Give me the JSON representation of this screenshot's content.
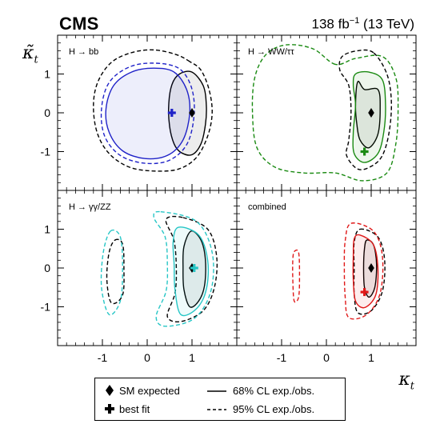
{
  "header": {
    "experiment": "CMS",
    "luminosity": "138 fb",
    "luminosity_exp": "−1",
    "energy": " (13 TeV)"
  },
  "axes": {
    "y_symbol": "κ̃",
    "y_sub": "t",
    "x_symbol": "κ",
    "x_sub": "t"
  },
  "legend": {
    "sm_expected": "SM expected",
    "best_fit": "best fit",
    "cl68": "68% CL exp./obs.",
    "cl95": "95% CL exp./obs."
  },
  "colors": {
    "bb": "#1f22c8",
    "ww": "#1a8a12",
    "gg": "#27c6c6",
    "combined": "#e01818",
    "expected": "#000000"
  },
  "chart_data": [
    {
      "type": "contour",
      "panel_label": "H → bb",
      "xlim": [
        -2,
        2
      ],
      "ylim": [
        -2,
        2
      ],
      "x_ticks": [
        -1,
        0,
        1
      ],
      "y_ticks": [
        -1,
        0,
        1
      ],
      "sm_expected": [
        1,
        0
      ],
      "best_fit": [
        0.55,
        0.0
      ],
      "color_key": "bb",
      "contours": [
        {
          "cl": "68%",
          "kind": "expected",
          "points": [
            [
              1.0,
              1.05
            ],
            [
              0.72,
              1.0
            ],
            [
              0.55,
              0.72
            ],
            [
              0.48,
              0.2
            ],
            [
              0.5,
              -0.35
            ],
            [
              0.6,
              -0.8
            ],
            [
              0.75,
              -1.02
            ],
            [
              1.0,
              -1.08
            ],
            [
              1.2,
              -0.8
            ],
            [
              1.3,
              -0.3
            ],
            [
              1.32,
              0.2
            ],
            [
              1.25,
              0.7
            ]
          ]
        },
        {
          "cl": "95%",
          "kind": "expected",
          "points": [
            [
              0.95,
              1.32
            ],
            [
              0.65,
              1.5
            ],
            [
              0.15,
              1.62
            ],
            [
              -0.35,
              1.55
            ],
            [
              -0.8,
              1.3
            ],
            [
              -1.1,
              0.8
            ],
            [
              -1.2,
              0.2
            ],
            [
              -1.12,
              -0.5
            ],
            [
              -0.85,
              -1.05
            ],
            [
              -0.4,
              -1.4
            ],
            [
              0.15,
              -1.5
            ],
            [
              0.7,
              -1.45
            ],
            [
              1.1,
              -1.15
            ],
            [
              1.35,
              -0.6
            ],
            [
              1.45,
              0.0
            ],
            [
              1.38,
              0.6
            ],
            [
              1.2,
              1.1
            ]
          ]
        },
        {
          "cl": "68%",
          "kind": "observed",
          "points": [
            [
              0.6,
              1.05
            ],
            [
              0.15,
              1.15
            ],
            [
              -0.35,
              1.05
            ],
            [
              -0.75,
              0.7
            ],
            [
              -0.92,
              0.1
            ],
            [
              -0.85,
              -0.5
            ],
            [
              -0.55,
              -0.98
            ],
            [
              -0.05,
              -1.18
            ],
            [
              0.45,
              -1.1
            ],
            [
              0.8,
              -0.7
            ],
            [
              0.95,
              0.0
            ],
            [
              0.88,
              0.6
            ]
          ]
        },
        {
          "cl": "95%",
          "kind": "observed",
          "points": [
            [
              0.7,
              1.15
            ],
            [
              0.15,
              1.28
            ],
            [
              -0.4,
              1.18
            ],
            [
              -0.85,
              0.78
            ],
            [
              -1.02,
              0.1
            ],
            [
              -0.95,
              -0.6
            ],
            [
              -0.6,
              -1.1
            ],
            [
              -0.05,
              -1.3
            ],
            [
              0.5,
              -1.22
            ],
            [
              0.9,
              -0.78
            ],
            [
              1.05,
              0.0
            ],
            [
              0.98,
              0.68
            ]
          ]
        }
      ]
    },
    {
      "type": "contour",
      "panel_label": "H → WW/ττ",
      "xlim": [
        -2,
        2
      ],
      "ylim": [
        -2,
        2
      ],
      "x_ticks": [
        -1,
        0,
        1
      ],
      "y_ticks": [
        -1,
        0,
        1
      ],
      "sm_expected": [
        1,
        0
      ],
      "best_fit": [
        0.85,
        -1.0
      ],
      "color_key": "ww",
      "contours": [
        {
          "cl": "68%",
          "kind": "expected",
          "points": [
            [
              0.7,
              0.8
            ],
            [
              0.85,
              0.6
            ],
            [
              1.15,
              0.6
            ],
            [
              1.2,
              0.1
            ],
            [
              1.15,
              -0.55
            ],
            [
              0.95,
              -0.9
            ],
            [
              0.75,
              -0.7
            ],
            [
              0.68,
              -0.3
            ],
            [
              0.65,
              0.2
            ]
          ]
        },
        {
          "cl": "95%",
          "kind": "expected",
          "points": [
            [
              1.05,
              1.55
            ],
            [
              0.7,
              1.6
            ],
            [
              0.35,
              1.45
            ],
            [
              0.3,
              1.1
            ],
            [
              0.5,
              0.7
            ],
            [
              0.55,
              0.0
            ],
            [
              0.5,
              -0.7
            ],
            [
              0.45,
              -1.1
            ],
            [
              0.7,
              -1.45
            ],
            [
              1.0,
              -1.38
            ],
            [
              1.25,
              -1.1
            ],
            [
              1.4,
              -0.5
            ],
            [
              1.45,
              0.3
            ],
            [
              1.35,
              1.0
            ]
          ]
        },
        {
          "cl": "68%",
          "kind": "observed",
          "points": [
            [
              0.65,
              1.0
            ],
            [
              0.95,
              1.05
            ],
            [
              1.25,
              0.85
            ],
            [
              1.32,
              0.2
            ],
            [
              1.28,
              -0.5
            ],
            [
              1.15,
              -1.05
            ],
            [
              0.85,
              -1.28
            ],
            [
              0.62,
              -1.05
            ],
            [
              0.6,
              -0.5
            ],
            [
              0.65,
              0.2
            ],
            [
              0.6,
              0.7
            ]
          ]
        },
        {
          "cl": "95%",
          "kind": "observed",
          "points": [
            [
              0.2,
              1.25
            ],
            [
              -0.3,
              1.65
            ],
            [
              -0.9,
              1.75
            ],
            [
              -1.35,
              1.5
            ],
            [
              -1.6,
              0.9
            ],
            [
              -1.65,
              0.0
            ],
            [
              -1.55,
              -0.9
            ],
            [
              -1.15,
              -1.4
            ],
            [
              -0.5,
              -1.55
            ],
            [
              0.2,
              -1.55
            ],
            [
              0.8,
              -1.75
            ],
            [
              1.35,
              -1.55
            ],
            [
              1.55,
              -0.8
            ],
            [
              1.6,
              0.1
            ],
            [
              1.55,
              0.9
            ],
            [
              1.25,
              1.45
            ],
            [
              0.65,
              1.4
            ]
          ]
        }
      ]
    },
    {
      "type": "contour",
      "panel_label": "H → γγ/ZZ",
      "xlim": [
        -2,
        2
      ],
      "ylim": [
        -2,
        2
      ],
      "x_ticks": [
        -1,
        0,
        1
      ],
      "y_ticks": [
        -1,
        0,
        1
      ],
      "sm_expected": [
        1,
        0
      ],
      "best_fit": [
        1.05,
        0.0
      ],
      "color_key": "gg",
      "contours": [
        {
          "cl": "68%",
          "kind": "expected",
          "points": [
            [
              0.98,
              0.95
            ],
            [
              1.2,
              0.72
            ],
            [
              1.3,
              0.2
            ],
            [
              1.28,
              -0.45
            ],
            [
              1.15,
              -0.85
            ],
            [
              0.95,
              -1.0
            ],
            [
              0.82,
              -0.55
            ],
            [
              0.8,
              0.0
            ],
            [
              0.82,
              0.55
            ]
          ]
        },
        {
          "cl": "95%",
          "kind": "expected",
          "points": [
            [
              0.8,
              1.3
            ],
            [
              1.35,
              1.0
            ],
            [
              1.55,
              0.3
            ],
            [
              1.5,
              -0.5
            ],
            [
              1.25,
              -1.1
            ],
            [
              0.75,
              -1.38
            ],
            [
              0.45,
              -1.25
            ],
            [
              0.62,
              -0.65
            ],
            [
              0.65,
              0.0
            ],
            [
              0.6,
              0.7
            ],
            [
              0.42,
              1.25
            ]
          ]
        },
        {
          "cl": "95%",
          "kind": "expected",
          "points": [
            [
              -0.72,
              0.72
            ],
            [
              -0.55,
              0.62
            ],
            [
              -0.52,
              0.0
            ],
            [
              -0.55,
              -0.7
            ],
            [
              -0.8,
              -0.9
            ],
            [
              -0.9,
              -0.3
            ],
            [
              -0.85,
              0.4
            ]
          ]
        },
        {
          "cl": "68%",
          "kind": "observed",
          "points": [
            [
              0.7,
              1.05
            ],
            [
              1.15,
              0.85
            ],
            [
              1.35,
              0.2
            ],
            [
              1.32,
              -0.55
            ],
            [
              1.1,
              -1.05
            ],
            [
              0.75,
              -1.2
            ],
            [
              0.62,
              -0.55
            ],
            [
              0.6,
              0.1
            ],
            [
              0.58,
              0.7
            ]
          ]
        },
        {
          "cl": "95%",
          "kind": "observed",
          "points": [
            [
              0.3,
              1.45
            ],
            [
              1.1,
              1.2
            ],
            [
              1.45,
              0.4
            ],
            [
              1.42,
              -0.6
            ],
            [
              1.05,
              -1.3
            ],
            [
              0.4,
              -1.5
            ],
            [
              0.2,
              -1.25
            ],
            [
              0.42,
              -0.6
            ],
            [
              0.45,
              0.1
            ],
            [
              0.4,
              0.8
            ],
            [
              0.15,
              1.3
            ]
          ]
        },
        {
          "cl": "95%",
          "kind": "observed",
          "points": [
            [
              -0.82,
              0.95
            ],
            [
              -0.6,
              0.8
            ],
            [
              -0.55,
              0.0
            ],
            [
              -0.6,
              -0.85
            ],
            [
              -0.85,
              -1.2
            ],
            [
              -1.02,
              -0.5
            ],
            [
              -0.98,
              0.4
            ]
          ]
        }
      ]
    },
    {
      "type": "contour",
      "panel_label": "combined",
      "xlim": [
        -2,
        2
      ],
      "ylim": [
        -2,
        2
      ],
      "x_ticks": [
        -1,
        0,
        1
      ],
      "y_ticks": [
        -1,
        0,
        1
      ],
      "sm_expected": [
        1,
        0
      ],
      "best_fit": [
        0.85,
        -0.62
      ],
      "color_key": "combined",
      "contours": [
        {
          "cl": "68%",
          "kind": "expected",
          "points": [
            [
              0.9,
              0.72
            ],
            [
              1.05,
              0.6
            ],
            [
              1.12,
              0.1
            ],
            [
              1.08,
              -0.5
            ],
            [
              0.95,
              -0.75
            ],
            [
              0.85,
              -0.5
            ],
            [
              0.83,
              0.0
            ],
            [
              0.85,
              0.5
            ]
          ]
        },
        {
          "cl": "95%",
          "kind": "expected",
          "points": [
            [
              0.75,
              1.0
            ],
            [
              1.15,
              0.8
            ],
            [
              1.3,
              0.2
            ],
            [
              1.25,
              -0.6
            ],
            [
              1.0,
              -1.1
            ],
            [
              0.7,
              -1.15
            ],
            [
              0.62,
              -0.65
            ],
            [
              0.62,
              0.0
            ],
            [
              0.62,
              0.65
            ]
          ]
        },
        {
          "cl": "68%",
          "kind": "observed",
          "points": [
            [
              0.75,
              0.85
            ],
            [
              1.05,
              0.6
            ],
            [
              1.15,
              0.0
            ],
            [
              1.1,
              -0.7
            ],
            [
              0.85,
              -1.02
            ],
            [
              0.65,
              -0.85
            ],
            [
              0.6,
              -0.3
            ],
            [
              0.6,
              0.3
            ],
            [
              0.62,
              0.75
            ]
          ]
        },
        {
          "cl": "95%",
          "kind": "observed",
          "points": [
            [
              0.55,
              1.15
            ],
            [
              1.05,
              0.95
            ],
            [
              1.25,
              0.3
            ],
            [
              1.2,
              -0.65
            ],
            [
              0.9,
              -1.2
            ],
            [
              0.5,
              -1.28
            ],
            [
              0.42,
              -0.75
            ],
            [
              0.4,
              0.0
            ],
            [
              0.42,
              0.7
            ]
          ]
        },
        {
          "cl": "95%",
          "kind": "observed",
          "points": [
            [
              -0.72,
              0.42
            ],
            [
              -0.62,
              0.4
            ],
            [
              -0.6,
              -0.2
            ],
            [
              -0.62,
              -0.75
            ],
            [
              -0.72,
              -0.85
            ],
            [
              -0.75,
              -0.3
            ],
            [
              -0.75,
              0.2
            ]
          ]
        }
      ]
    }
  ]
}
